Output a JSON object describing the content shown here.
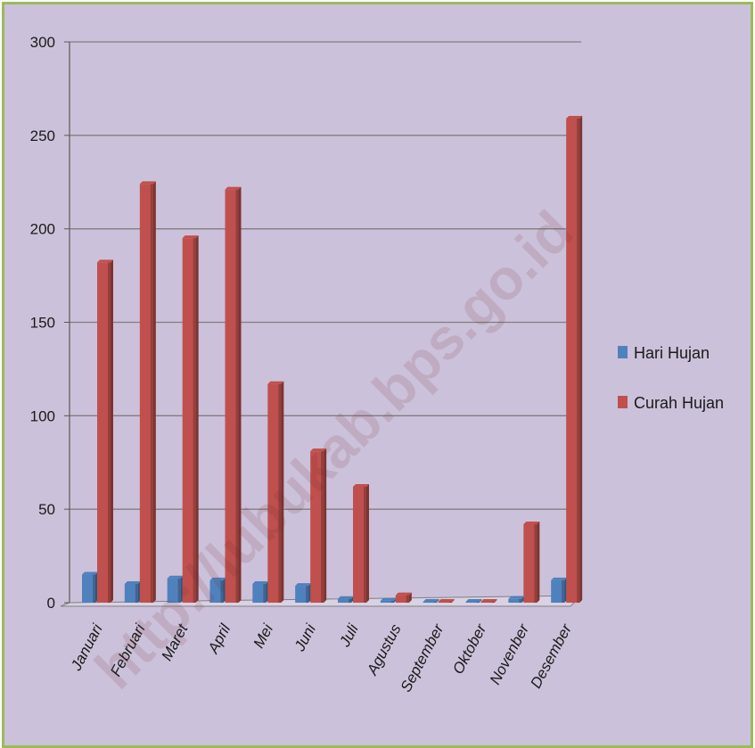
{
  "chart_data": {
    "type": "bar",
    "categories": [
      "Januari",
      "Februari",
      "Maret",
      "April",
      "Mei",
      "Juni",
      "Juli",
      "Agustus",
      "September",
      "Oktober",
      "Novenber",
      "Desember"
    ],
    "series": [
      {
        "name": "Hari Hujan",
        "color": "#4f81bd",
        "values": [
          15,
          10,
          13,
          12,
          10,
          9,
          2,
          1,
          0,
          0,
          2,
          12
        ]
      },
      {
        "name": "Curah Hujan",
        "color": "#c0504d",
        "values": [
          182,
          224,
          195,
          221,
          117,
          81,
          62,
          4,
          0.5,
          0.5,
          42,
          259
        ]
      }
    ],
    "title": "",
    "xlabel": "",
    "ylabel": "",
    "ylim": [
      0,
      300
    ],
    "yticks": [
      0,
      50,
      100,
      150,
      200,
      250,
      300
    ],
    "grid": true,
    "legend_position": "right"
  },
  "watermark": "http://lubukab.bps.go.id",
  "colors": {
    "background": "#ccc1da",
    "border": "#9bbb59",
    "gridline": "#7f7f7f"
  }
}
